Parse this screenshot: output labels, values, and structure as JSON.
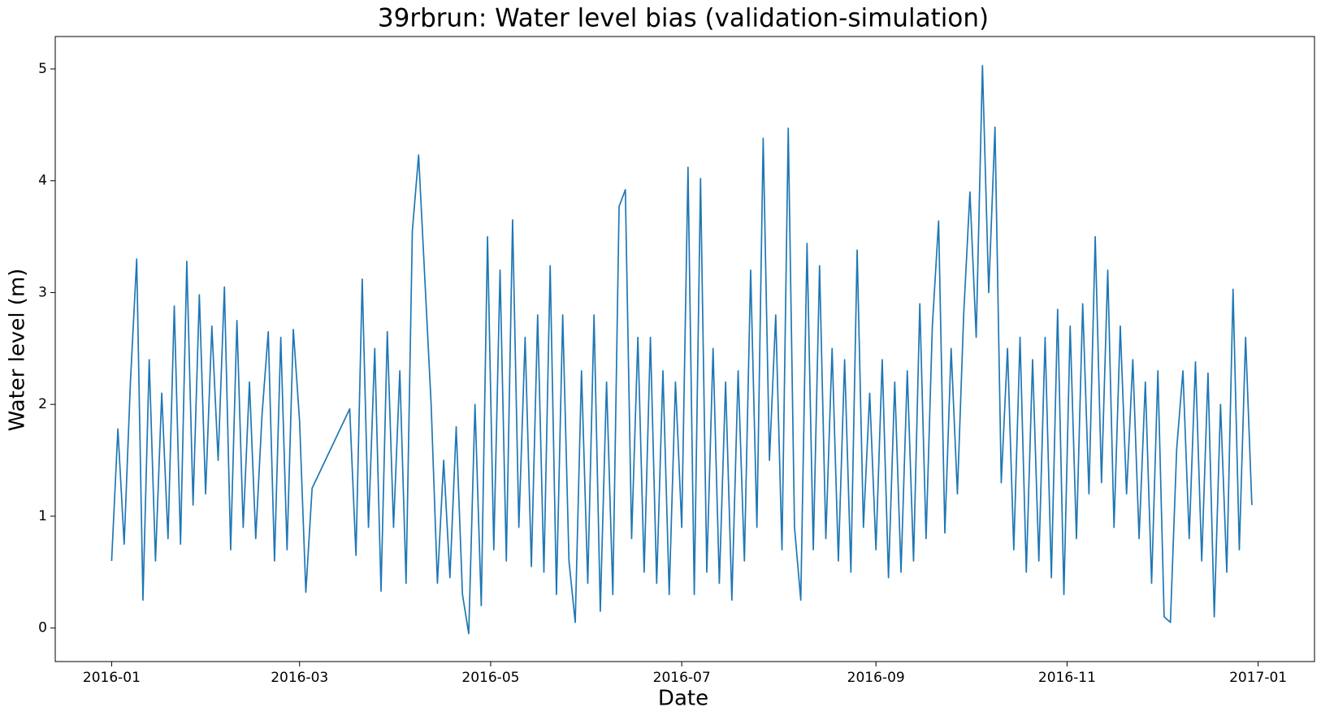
{
  "chart_data": {
    "type": "line",
    "title": "39rbrun: Water level bias (validation-simulation)",
    "x_label": "Date",
    "y_label": "Water level (m)",
    "xlim": [
      -18,
      384
    ],
    "ylim": [
      -0.3,
      5.29
    ],
    "xticks": [
      {
        "value": 0,
        "label": "2016-01"
      },
      {
        "value": 60,
        "label": "2016-03"
      },
      {
        "value": 121,
        "label": "2016-05"
      },
      {
        "value": 182,
        "label": "2016-07"
      },
      {
        "value": 244,
        "label": "2016-09"
      },
      {
        "value": 305,
        "label": "2016-11"
      },
      {
        "value": 366,
        "label": "2017-01"
      }
    ],
    "yticks": [
      0,
      1,
      2,
      3,
      4,
      5
    ],
    "grid": false,
    "series": [
      {
        "color": "#1f77b4",
        "x": [
          0,
          2,
          4,
          6,
          8,
          10,
          12,
          14,
          16,
          18,
          20,
          22,
          24,
          26,
          28,
          30,
          32,
          34,
          36,
          38,
          40,
          42,
          44,
          46,
          48,
          50,
          52,
          54,
          56,
          58,
          60,
          62,
          64,
          76,
          78,
          80,
          82,
          84,
          86,
          88,
          90,
          92,
          94,
          96,
          98,
          102,
          104,
          106,
          108,
          110,
          112,
          114,
          116,
          118,
          120,
          122,
          124,
          126,
          128,
          130,
          132,
          134,
          136,
          138,
          140,
          142,
          144,
          146,
          148,
          150,
          152,
          154,
          156,
          158,
          160,
          162,
          164,
          166,
          168,
          170,
          172,
          174,
          176,
          178,
          180,
          182,
          184,
          186,
          188,
          190,
          192,
          194,
          196,
          198,
          200,
          202,
          204,
          206,
          208,
          210,
          212,
          214,
          216,
          218,
          220,
          222,
          224,
          226,
          228,
          230,
          232,
          234,
          236,
          238,
          240,
          242,
          244,
          246,
          248,
          250,
          252,
          254,
          256,
          258,
          260,
          262,
          264,
          266,
          268,
          270,
          272,
          274,
          276,
          278,
          280,
          282,
          284,
          286,
          288,
          290,
          292,
          294,
          296,
          298,
          300,
          302,
          304,
          306,
          308,
          310,
          312,
          314,
          316,
          318,
          320,
          322,
          324,
          326,
          328,
          330,
          332,
          334,
          336,
          338,
          340,
          342,
          344,
          346,
          348,
          350,
          352,
          354,
          356,
          358,
          360,
          362,
          364
        ],
        "values": [
          0.6,
          1.78,
          0.75,
          2.2,
          3.3,
          0.25,
          2.4,
          0.6,
          2.1,
          0.8,
          2.88,
          0.75,
          3.28,
          1.1,
          2.98,
          1.2,
          2.7,
          1.5,
          3.05,
          0.7,
          2.75,
          0.9,
          2.2,
          0.8,
          1.9,
          2.65,
          0.6,
          2.6,
          0.7,
          2.67,
          1.85,
          0.32,
          1.25,
          1.96,
          0.65,
          3.12,
          0.9,
          2.5,
          0.33,
          2.65,
          0.9,
          2.3,
          0.4,
          3.55,
          4.23,
          2.0,
          0.4,
          1.5,
          0.45,
          1.8,
          0.3,
          -0.05,
          2.0,
          0.2,
          3.5,
          0.7,
          3.2,
          0.6,
          3.65,
          0.9,
          2.6,
          0.55,
          2.8,
          0.5,
          3.24,
          0.3,
          2.8,
          0.6,
          0.05,
          2.3,
          0.4,
          2.8,
          0.15,
          2.2,
          0.3,
          3.77,
          3.92,
          0.8,
          2.6,
          0.5,
          2.6,
          0.4,
          2.3,
          0.3,
          2.2,
          0.9,
          4.12,
          0.3,
          4.02,
          0.5,
          2.5,
          0.4,
          2.2,
          0.25,
          2.3,
          0.6,
          3.2,
          0.9,
          4.38,
          1.5,
          2.8,
          0.7,
          4.47,
          0.9,
          0.25,
          3.44,
          0.7,
          3.24,
          0.8,
          2.5,
          0.6,
          2.4,
          0.5,
          3.38,
          0.9,
          2.1,
          0.7,
          2.4,
          0.45,
          2.2,
          0.5,
          2.3,
          0.6,
          2.9,
          0.8,
          2.7,
          3.64,
          0.85,
          2.5,
          1.2,
          2.8,
          3.9,
          2.6,
          5.03,
          3.0,
          4.48,
          1.3,
          2.5,
          0.7,
          2.6,
          0.5,
          2.4,
          0.6,
          2.6,
          0.45,
          2.85,
          0.3,
          2.7,
          0.8,
          2.9,
          1.2,
          3.5,
          1.3,
          3.2,
          0.9,
          2.7,
          1.2,
          2.4,
          0.8,
          2.2,
          0.4,
          2.3,
          0.1,
          0.05,
          1.6,
          2.3,
          0.8,
          2.38,
          0.6,
          2.28,
          0.1,
          2.0,
          0.5,
          3.03,
          0.7,
          2.6,
          1.1
        ]
      }
    ]
  }
}
